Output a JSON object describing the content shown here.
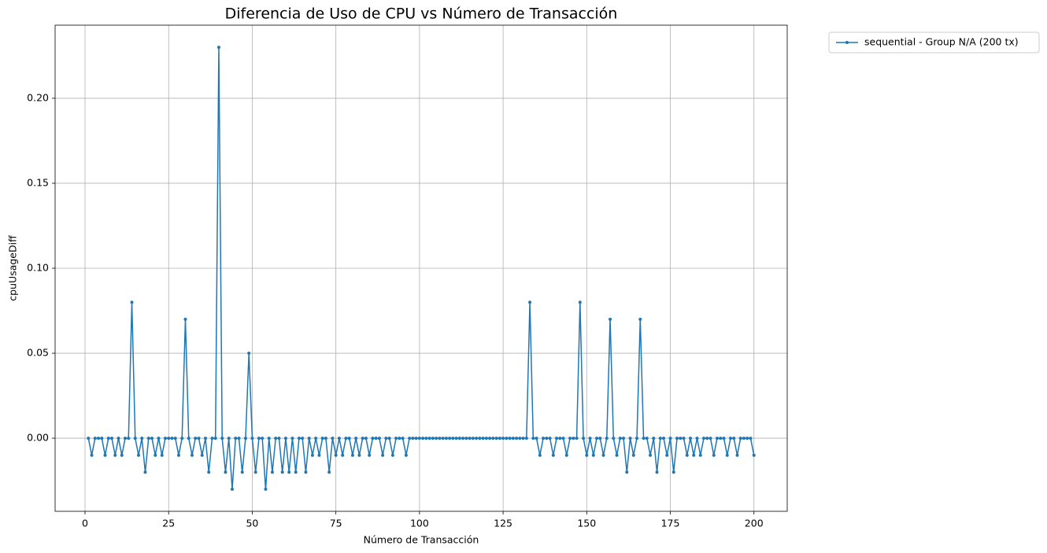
{
  "chart_data": {
    "type": "line",
    "title": "Diferencia de Uso de CPU vs Número de Transacción",
    "x_label": "Número de Transacción",
    "y_label": "cpuUsageDiff",
    "x": [
      1,
      2,
      3,
      4,
      5,
      6,
      7,
      8,
      9,
      10,
      11,
      12,
      13,
      14,
      15,
      16,
      17,
      18,
      19,
      20,
      21,
      22,
      23,
      24,
      25,
      26,
      27,
      28,
      29,
      30,
      31,
      32,
      33,
      34,
      35,
      36,
      37,
      38,
      39,
      40,
      41,
      42,
      43,
      44,
      45,
      46,
      47,
      48,
      49,
      50,
      51,
      52,
      53,
      54,
      55,
      56,
      57,
      58,
      59,
      60,
      61,
      62,
      63,
      64,
      65,
      66,
      67,
      68,
      69,
      70,
      71,
      72,
      73,
      74,
      75,
      76,
      77,
      78,
      79,
      80,
      81,
      82,
      83,
      84,
      85,
      86,
      87,
      88,
      89,
      90,
      91,
      92,
      93,
      94,
      95,
      96,
      97,
      98,
      99,
      100,
      101,
      102,
      103,
      104,
      105,
      106,
      107,
      108,
      109,
      110,
      111,
      112,
      113,
      114,
      115,
      116,
      117,
      118,
      119,
      120,
      121,
      122,
      123,
      124,
      125,
      126,
      127,
      128,
      129,
      130,
      131,
      132,
      133,
      134,
      135,
      136,
      137,
      138,
      139,
      140,
      141,
      142,
      143,
      144,
      145,
      146,
      147,
      148,
      149,
      150,
      151,
      152,
      153,
      154,
      155,
      156,
      157,
      158,
      159,
      160,
      161,
      162,
      163,
      164,
      165,
      166,
      167,
      168,
      169,
      170,
      171,
      172,
      173,
      174,
      175,
      176,
      177,
      178,
      179,
      180,
      181,
      182,
      183,
      184,
      185,
      186,
      187,
      188,
      189,
      190,
      191,
      192,
      193,
      194,
      195,
      196,
      197,
      198,
      199,
      200
    ],
    "series": [
      {
        "name": "sequential - Group N/A (200 tx)",
        "color": "#1f77b4",
        "values": [
          0,
          -0.01,
          0,
          0,
          0,
          -0.01,
          0,
          0,
          -0.01,
          0,
          -0.01,
          0,
          0,
          0.08,
          0,
          -0.01,
          0,
          -0.02,
          0,
          0,
          -0.01,
          0,
          -0.01,
          0,
          0,
          0,
          0,
          -0.01,
          0,
          0.07,
          0,
          -0.01,
          0,
          0,
          -0.01,
          0,
          -0.02,
          0,
          0,
          0.23,
          0,
          -0.02,
          0,
          -0.03,
          0,
          0,
          -0.02,
          0,
          0.05,
          0,
          -0.02,
          0,
          0,
          -0.03,
          0,
          -0.02,
          0,
          0,
          -0.02,
          0,
          -0.02,
          0,
          -0.02,
          0,
          0,
          -0.02,
          0,
          -0.01,
          0,
          -0.01,
          0,
          0,
          -0.02,
          0,
          -0.01,
          0,
          -0.01,
          0,
          0,
          -0.01,
          0,
          -0.01,
          0,
          0,
          -0.01,
          0,
          0,
          0,
          -0.01,
          0,
          0,
          -0.01,
          0,
          0,
          0,
          -0.01,
          0,
          0,
          0,
          0,
          0,
          0,
          0,
          0,
          0,
          0,
          0,
          0,
          0,
          0,
          0,
          0,
          0,
          0,
          0,
          0,
          0,
          0,
          0,
          0,
          0,
          0,
          0,
          0,
          0,
          0,
          0,
          0,
          0,
          0,
          0,
          0,
          0.08,
          0,
          0,
          -0.01,
          0,
          0,
          0,
          -0.01,
          0,
          0,
          0,
          -0.01,
          0,
          0,
          0,
          0.08,
          0,
          -0.01,
          0,
          -0.01,
          0,
          0,
          -0.01,
          0,
          0.07,
          0,
          -0.01,
          0,
          0,
          -0.02,
          0,
          -0.01,
          0,
          0.07,
          0,
          0,
          -0.01,
          0,
          -0.02,
          0,
          0,
          -0.01,
          0,
          -0.02,
          0,
          0,
          0,
          -0.01,
          0,
          -0.01,
          0,
          -0.01,
          0,
          0,
          0,
          -0.01,
          0,
          0,
          0,
          -0.01,
          0,
          0,
          -0.01,
          0,
          0,
          0,
          0,
          -0.01
        ]
      }
    ],
    "xlim": [
      -8.95,
      209.95
    ],
    "ylim": [
      -0.043,
      0.243
    ],
    "xticks": [
      0,
      25,
      50,
      75,
      100,
      125,
      150,
      175,
      200
    ],
    "yticks": [
      {
        "value": 0,
        "label": "0.00"
      },
      {
        "value": 0.05,
        "label": "0.05"
      },
      {
        "value": 0.1,
        "label": "0.10"
      },
      {
        "value": 0.15,
        "label": "0.15"
      },
      {
        "value": 0.2,
        "label": "0.20"
      }
    ],
    "grid": true,
    "legend": "outside upper right"
  }
}
